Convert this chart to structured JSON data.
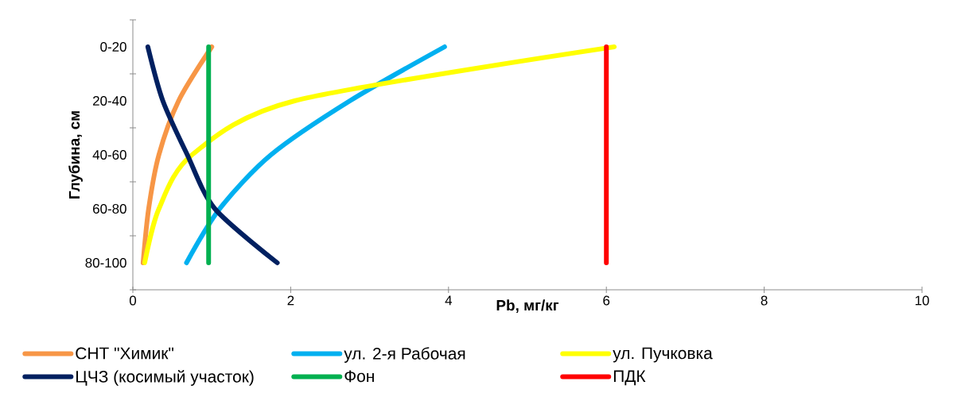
{
  "chart_data": {
    "type": "line",
    "orientation": "horizontal",
    "xlabel": "Pb, мг/кг",
    "ylabel": "Глубина, см",
    "categories": [
      "0-20",
      "20-40",
      "40-60",
      "60-80",
      "80-100"
    ],
    "xlim": [
      0,
      10
    ],
    "xticks": [
      0,
      2,
      4,
      6,
      8,
      10
    ],
    "grid": false,
    "legend": "bottom",
    "marker": "none",
    "line_style": "solid",
    "series": [
      {
        "name": "СНТ \"Химик\"",
        "color": "#f79646",
        "values": [
          1.0,
          0.58,
          0.33,
          0.2,
          0.13
        ]
      },
      {
        "name": "ул. 2-я Рабочая",
        "color": "#00b0f0",
        "values": [
          3.95,
          2.75,
          1.75,
          1.1,
          0.68
        ]
      },
      {
        "name": "ул. Пучковка",
        "color": "#ffff00",
        "values": [
          6.1,
          2.05,
          0.75,
          0.33,
          0.15
        ]
      },
      {
        "name": "ЦЧЗ (косимый участок)",
        "color": "#002060",
        "values": [
          0.19,
          0.38,
          0.69,
          1.04,
          1.83
        ]
      },
      {
        "name": "Фон",
        "color": "#00b050",
        "values": [
          0.96,
          0.96,
          0.96,
          0.96,
          0.96
        ]
      },
      {
        "name": "ПДК",
        "color": "#ff0000",
        "values": [
          6,
          6,
          6,
          6,
          6
        ]
      }
    ]
  }
}
